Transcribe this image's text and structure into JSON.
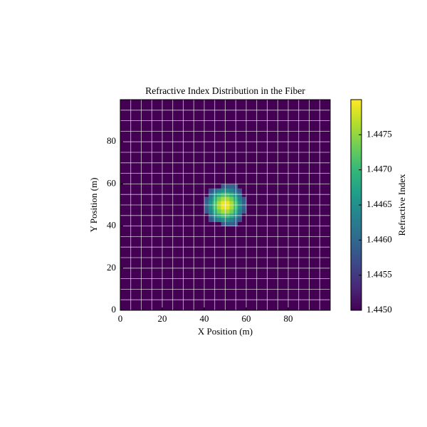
{
  "chart_data": {
    "type": "heatmap",
    "title": "Refractive Index Distribution in the Fiber",
    "x_label": "X Position (m)",
    "y_label": "Y Position (m)",
    "colorbar_label": "Refractive Index",
    "colormap": "viridis",
    "xlim": [
      0,
      100
    ],
    "ylim": [
      0,
      100
    ],
    "xticks": [
      0,
      20,
      40,
      60,
      80
    ],
    "yticks": [
      0,
      20,
      40,
      60,
      80
    ],
    "grid": true,
    "grid_step": 5,
    "xbins": [
      0,
      40,
      42,
      44,
      46,
      48,
      50,
      52,
      54,
      56,
      58,
      60,
      100
    ],
    "ybins": [
      0,
      40,
      42,
      44,
      46,
      48,
      50,
      52,
      54,
      56,
      58,
      60,
      100
    ],
    "clim": [
      1.445,
      1.448
    ],
    "cticks": [
      {
        "value": 1.445,
        "label": "1.4450"
      },
      {
        "value": 1.4455,
        "label": "1.4455"
      },
      {
        "value": 1.446,
        "label": "1.4460"
      },
      {
        "value": 1.4465,
        "label": "1.4465"
      },
      {
        "value": 1.447,
        "label": "1.4470"
      },
      {
        "value": 1.4475,
        "label": "1.4475"
      }
    ],
    "z": [
      [
        1.445,
        1.445,
        1.445,
        1.445,
        1.445,
        1.445,
        1.445,
        1.445,
        1.445,
        1.445,
        1.445,
        1.445
      ],
      [
        1.445,
        1.445,
        1.445,
        1.445,
        1.445,
        1.44586,
        1.44596,
        1.44596,
        1.44586,
        1.445,
        1.445,
        1.445
      ],
      [
        1.445,
        1.445,
        1.44577,
        1.44607,
        1.44634,
        1.4465,
        1.4465,
        1.44634,
        1.44607,
        1.44577,
        1.445,
        1.445
      ],
      [
        1.445,
        1.445,
        1.44607,
        1.4465,
        1.44687,
        1.44709,
        1.44709,
        1.44687,
        1.4465,
        1.44607,
        1.445,
        1.445
      ],
      [
        1.445,
        1.44586,
        1.44634,
        1.44687,
        1.44734,
        1.44761,
        1.44761,
        1.44734,
        1.44687,
        1.44634,
        1.44586,
        1.445
      ],
      [
        1.445,
        1.44596,
        1.4465,
        1.44709,
        1.44761,
        1.44792,
        1.44792,
        1.44761,
        1.44709,
        1.4465,
        1.44596,
        1.445
      ],
      [
        1.445,
        1.44596,
        1.4465,
        1.44709,
        1.44761,
        1.44792,
        1.44792,
        1.44761,
        1.44709,
        1.4465,
        1.44596,
        1.445
      ],
      [
        1.445,
        1.44586,
        1.44634,
        1.44687,
        1.44734,
        1.44761,
        1.44761,
        1.44734,
        1.44687,
        1.44634,
        1.44586,
        1.445
      ],
      [
        1.445,
        1.445,
        1.44607,
        1.4465,
        1.44687,
        1.44709,
        1.44709,
        1.44687,
        1.4465,
        1.44607,
        1.445,
        1.445
      ],
      [
        1.445,
        1.445,
        1.44577,
        1.44607,
        1.44634,
        1.4465,
        1.4465,
        1.44634,
        1.44607,
        1.44577,
        1.445,
        1.445
      ],
      [
        1.445,
        1.445,
        1.445,
        1.445,
        1.445,
        1.44586,
        1.44596,
        1.44596,
        1.44586,
        1.445,
        1.445,
        1.445
      ],
      [
        1.445,
        1.445,
        1.445,
        1.445,
        1.445,
        1.445,
        1.445,
        1.445,
        1.445,
        1.445,
        1.445,
        1.445
      ]
    ]
  }
}
